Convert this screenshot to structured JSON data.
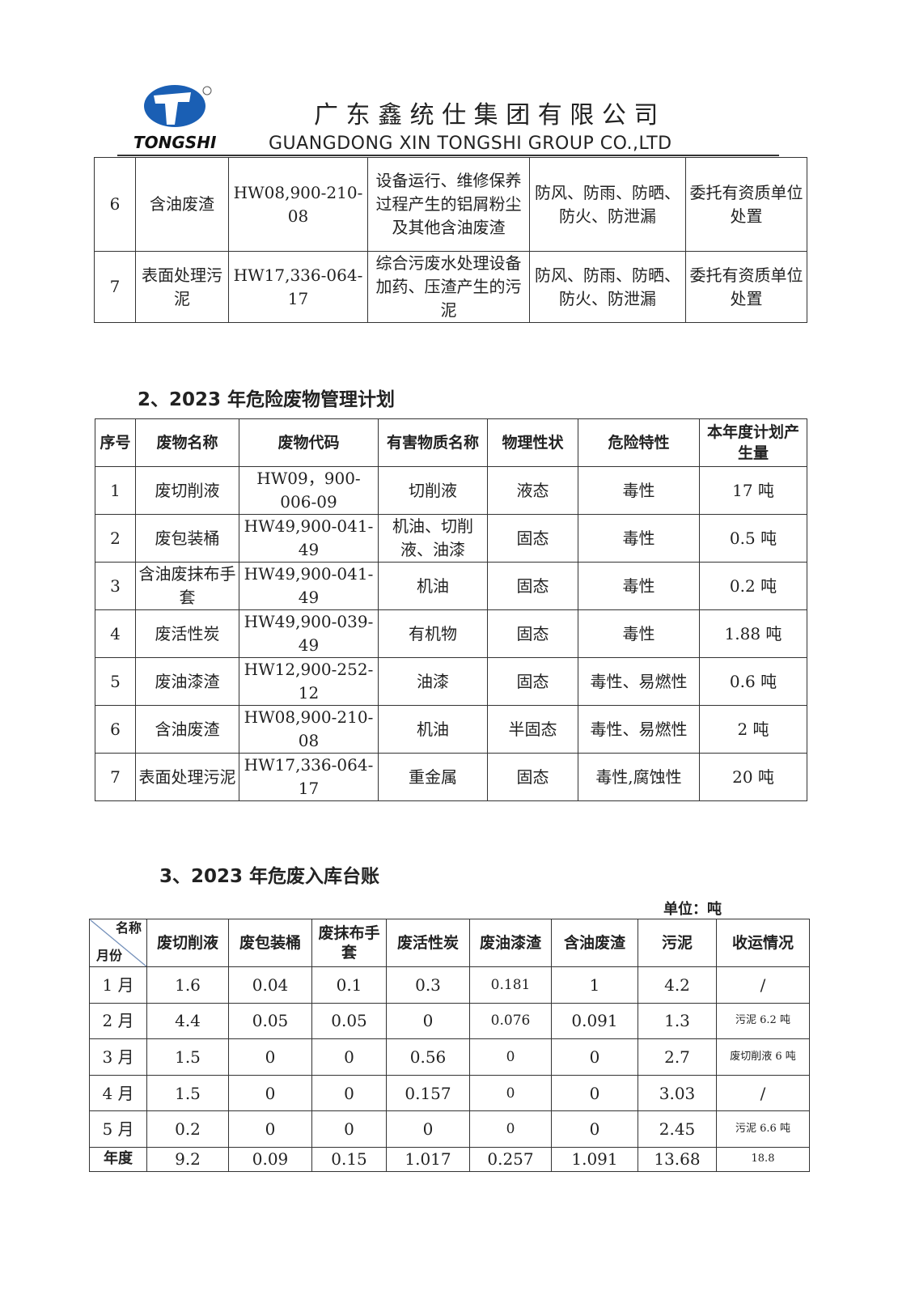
{
  "header": {
    "company_cn": "广 东 鑫 统 仕 集 团 有 限 公 司",
    "company_en": "GUANGDONG XIN TONGSHI GROUP CO.,LTD",
    "logo_text": "TONGSHI",
    "brand_color": "#1a5fb4"
  },
  "table1": {
    "rows": [
      [
        "6",
        "含油废渣",
        "HW08,900-210-08",
        "设备运行、维修保养过程产生的铝屑粉尘及其他含油废渣",
        "防风、防雨、防晒、防火、防泄漏",
        "委托有资质单位处置"
      ],
      [
        "7",
        "表面处理污泥",
        "HW17,336-064-17",
        "综合污废水处理设备加药、压渣产生的污泥",
        "防风、防雨、防晒、防火、防泄漏",
        "委托有资质单位处置"
      ]
    ]
  },
  "section2": {
    "title": "2、2023 年危险废物管理计划",
    "headers": [
      "序号",
      "废物名称",
      "废物代码",
      "有害物质名称",
      "物理性状",
      "危险特性",
      "本年度计划产生量"
    ],
    "rows": [
      [
        "1",
        "废切削液",
        "HW09，900-006-09",
        "切削液",
        "液态",
        "毒性",
        "17 吨"
      ],
      [
        "2",
        "废包装桶",
        "HW49,900-041-49",
        "机油、切削液、油漆",
        "固态",
        "毒性",
        "0.5 吨"
      ],
      [
        "3",
        "含油废抹布手套",
        "HW49,900-041-49",
        "机油",
        "固态",
        "毒性",
        "0.2 吨"
      ],
      [
        "4",
        "废活性炭",
        "HW49,900-039-49",
        "有机物",
        "固态",
        "毒性",
        "1.88 吨"
      ],
      [
        "5",
        "废油漆渣",
        "HW12,900-252-12",
        "油漆",
        "固态",
        "毒性、易燃性",
        "0.6 吨"
      ],
      [
        "6",
        "含油废渣",
        "HW08,900-210-08",
        "机油",
        "半固态",
        "毒性、易燃性",
        "2 吨"
      ],
      [
        "7",
        "表面处理污泥",
        "HW17,336-064-17",
        "重金属",
        "固态",
        "毒性,腐蚀性",
        "20 吨"
      ]
    ]
  },
  "section3": {
    "title": "3、2023 年危废入库台账",
    "unit": "单位：吨",
    "corner_top": "名称",
    "corner_bottom": "月份",
    "headers": [
      "废切削液",
      "废包装桶",
      "废抹布手套",
      "废活性炭",
      "废油漆渣",
      "含油废渣",
      "污泥",
      "收运情况"
    ],
    "rows": [
      [
        "1 月",
        "1.6",
        "0.04",
        "0.1",
        "0.3",
        "0.181",
        "1",
        "4.2",
        "/"
      ],
      [
        "2 月",
        "4.4",
        "0.05",
        "0.05",
        "0",
        "0.076",
        "0.091",
        "1.3",
        "污泥 6.2 吨"
      ],
      [
        "3 月",
        "1.5",
        "0",
        "0",
        "0.56",
        "0",
        "0",
        "2.7",
        "废切削液 6 吨"
      ],
      [
        "4 月",
        "1.5",
        "0",
        "0",
        "0.157",
        "0",
        "0",
        "3.03",
        "/"
      ],
      [
        "5 月",
        "0.2",
        "0",
        "0",
        "0",
        "0",
        "0",
        "2.45",
        "污泥 6.6 吨"
      ],
      [
        "年度",
        "9.2",
        "0.09",
        "0.15",
        "1.017",
        "0.257",
        "1.091",
        "13.68",
        "18.8"
      ]
    ]
  }
}
